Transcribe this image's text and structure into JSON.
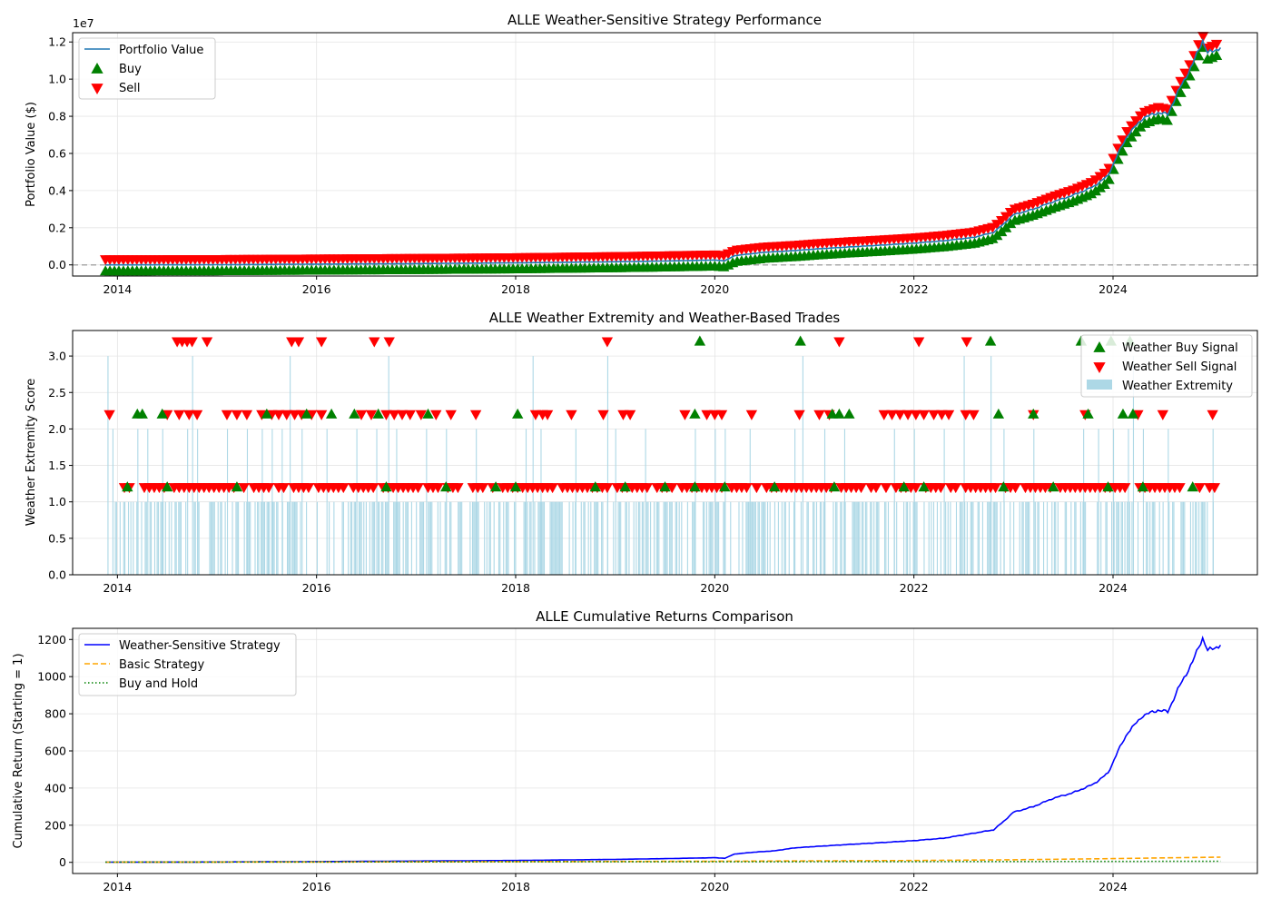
{
  "chart_data": [
    {
      "type": "line",
      "title": "ALLE Weather-Sensitive Strategy Performance",
      "xlabel": "",
      "ylabel": "Portfolio Value ($)",
      "y_scale_note": "1e7",
      "xlim": [
        2013.55,
        2025.45
      ],
      "ylim": [
        -0.06,
        1.25
      ],
      "x_ticks": [
        "2014",
        "2016",
        "2018",
        "2020",
        "2022",
        "2024"
      ],
      "y_ticks": [
        "0.0",
        "0.2",
        "0.4",
        "0.6",
        "0.8",
        "1.0",
        "1.2"
      ],
      "reference_line": {
        "y": 0,
        "style": "dashed",
        "color": "#aaaaaa"
      },
      "legend": {
        "position": "top-left",
        "entries": [
          "Portfolio Value",
          "Buy",
          "Sell"
        ]
      },
      "series": [
        {
          "name": "Portfolio Value",
          "color": "#1f77b4",
          "points": [
            [
              2013.88,
              0.0
            ],
            [
              2015.0,
              0.001
            ],
            [
              2016.0,
              0.004
            ],
            [
              2017.0,
              0.007
            ],
            [
              2018.0,
              0.011
            ],
            [
              2018.5,
              0.014
            ],
            [
              2019.0,
              0.017
            ],
            [
              2019.5,
              0.021
            ],
            [
              2020.0,
              0.026
            ],
            [
              2020.1,
              0.022
            ],
            [
              2020.2,
              0.05
            ],
            [
              2020.5,
              0.068
            ],
            [
              2020.8,
              0.077
            ],
            [
              2021.0,
              0.085
            ],
            [
              2021.3,
              0.095
            ],
            [
              2021.6,
              0.104
            ],
            [
              2022.0,
              0.117
            ],
            [
              2022.3,
              0.13
            ],
            [
              2022.6,
              0.148
            ],
            [
              2022.8,
              0.175
            ],
            [
              2022.9,
              0.22
            ],
            [
              2023.0,
              0.27
            ],
            [
              2023.2,
              0.3
            ],
            [
              2023.4,
              0.34
            ],
            [
              2023.6,
              0.375
            ],
            [
              2023.8,
              0.42
            ],
            [
              2023.95,
              0.48
            ],
            [
              2024.05,
              0.6
            ],
            [
              2024.15,
              0.7
            ],
            [
              2024.3,
              0.79
            ],
            [
              2024.45,
              0.82
            ],
            [
              2024.55,
              0.81
            ],
            [
              2024.65,
              0.93
            ],
            [
              2024.8,
              1.08
            ],
            [
              2024.9,
              1.21
            ],
            [
              2024.95,
              1.14
            ],
            [
              2025.0,
              1.15
            ],
            [
              2025.08,
              1.17
            ]
          ]
        }
      ],
      "markers": {
        "Buy": {
          "symbol": "triangle-up",
          "color": "#008000"
        },
        "Sell": {
          "symbol": "triangle-down",
          "color": "#ff0000"
        }
      }
    },
    {
      "type": "bar",
      "title": "ALLE Weather Extremity and Weather-Based Trades",
      "xlabel": "",
      "ylabel": "Weather Extremity Score",
      "xlim": [
        2013.55,
        2025.45
      ],
      "ylim": [
        0,
        3.35
      ],
      "x_ticks": [
        "2014",
        "2016",
        "2018",
        "2020",
        "2022",
        "2024"
      ],
      "y_ticks": [
        "0.0",
        "0.5",
        "1.0",
        "1.5",
        "2.0",
        "2.5",
        "3.0"
      ],
      "legend": {
        "position": "upper-right",
        "entries": [
          "Weather Buy Signal",
          "Weather Sell Signal",
          "Weather Extremity"
        ]
      },
      "extremity_color": "#add8e6",
      "extremity_score_3_dates": [
        2013.9,
        2014.75,
        2015.73,
        2016.72,
        2018.17,
        2018.92,
        2020.88,
        2022.5,
        2022.77,
        2024.2
      ],
      "extremity_score_2_dates": [
        2013.95,
        2014.2,
        2014.3,
        2014.45,
        2014.7,
        2014.8,
        2015.1,
        2015.3,
        2015.45,
        2015.55,
        2015.65,
        2015.85,
        2016.1,
        2016.4,
        2016.6,
        2016.8,
        2017.1,
        2017.3,
        2017.6,
        2018.1,
        2018.25,
        2018.6,
        2019.0,
        2019.3,
        2019.8,
        2020.0,
        2020.1,
        2020.35,
        2020.8,
        2021.1,
        2021.3,
        2021.8,
        2022.0,
        2022.3,
        2022.9,
        2023.2,
        2023.7,
        2023.85,
        2024.0,
        2024.15,
        2024.3,
        2024.55,
        2025.0
      ],
      "buy_signals": [
        {
          "x": 2019.85,
          "score": 3
        },
        {
          "x": 2020.86,
          "score": 3
        },
        {
          "x": 2022.77,
          "score": 3
        },
        {
          "x": 2023.68,
          "score": 3
        },
        {
          "x": 2023.98,
          "score": 3
        },
        {
          "x": 2024.17,
          "score": 3
        },
        {
          "x": 2014.2,
          "score": 2
        },
        {
          "x": 2014.25,
          "score": 2
        },
        {
          "x": 2014.45,
          "score": 2
        },
        {
          "x": 2015.5,
          "score": 2
        },
        {
          "x": 2015.9,
          "score": 2
        },
        {
          "x": 2016.15,
          "score": 2
        },
        {
          "x": 2016.38,
          "score": 2
        },
        {
          "x": 2016.62,
          "score": 2
        },
        {
          "x": 2017.12,
          "score": 2
        },
        {
          "x": 2018.02,
          "score": 2
        },
        {
          "x": 2019.8,
          "score": 2
        },
        {
          "x": 2021.18,
          "score": 2
        },
        {
          "x": 2021.25,
          "score": 2
        },
        {
          "x": 2021.35,
          "score": 2
        },
        {
          "x": 2022.85,
          "score": 2
        },
        {
          "x": 2023.2,
          "score": 2
        },
        {
          "x": 2023.75,
          "score": 2
        },
        {
          "x": 2024.1,
          "score": 2
        },
        {
          "x": 2024.2,
          "score": 2
        },
        {
          "x": 2014.1,
          "score": 1
        },
        {
          "x": 2014.5,
          "score": 1
        },
        {
          "x": 2015.2,
          "score": 1
        },
        {
          "x": 2016.7,
          "score": 1
        },
        {
          "x": 2017.3,
          "score": 1
        },
        {
          "x": 2017.8,
          "score": 1
        },
        {
          "x": 2018.0,
          "score": 1
        },
        {
          "x": 2018.8,
          "score": 1
        },
        {
          "x": 2019.1,
          "score": 1
        },
        {
          "x": 2019.5,
          "score": 1
        },
        {
          "x": 2019.8,
          "score": 1
        },
        {
          "x": 2020.1,
          "score": 1
        },
        {
          "x": 2020.6,
          "score": 1
        },
        {
          "x": 2021.2,
          "score": 1
        },
        {
          "x": 2021.9,
          "score": 1
        },
        {
          "x": 2022.1,
          "score": 1
        },
        {
          "x": 2022.9,
          "score": 1
        },
        {
          "x": 2023.4,
          "score": 1
        },
        {
          "x": 2023.95,
          "score": 1
        },
        {
          "x": 2024.3,
          "score": 1
        },
        {
          "x": 2024.8,
          "score": 1
        }
      ],
      "sell_signals": [
        {
          "x": 2014.6,
          "score": 3
        },
        {
          "x": 2014.65,
          "score": 3
        },
        {
          "x": 2014.7,
          "score": 3
        },
        {
          "x": 2014.75,
          "score": 3
        },
        {
          "x": 2014.9,
          "score": 3
        },
        {
          "x": 2015.75,
          "score": 3
        },
        {
          "x": 2015.82,
          "score": 3
        },
        {
          "x": 2016.05,
          "score": 3
        },
        {
          "x": 2016.58,
          "score": 3
        },
        {
          "x": 2016.73,
          "score": 3
        },
        {
          "x": 2018.92,
          "score": 3
        },
        {
          "x": 2021.25,
          "score": 3
        },
        {
          "x": 2022.05,
          "score": 3
        },
        {
          "x": 2022.53,
          "score": 3
        },
        {
          "x": 2013.92,
          "score": 2
        },
        {
          "x": 2014.5,
          "score": 2
        },
        {
          "x": 2014.62,
          "score": 2
        },
        {
          "x": 2014.72,
          "score": 2
        },
        {
          "x": 2014.8,
          "score": 2
        },
        {
          "x": 2015.1,
          "score": 2
        },
        {
          "x": 2015.2,
          "score": 2
        },
        {
          "x": 2015.3,
          "score": 2
        },
        {
          "x": 2015.45,
          "score": 2
        },
        {
          "x": 2015.55,
          "score": 2
        },
        {
          "x": 2015.62,
          "score": 2
        },
        {
          "x": 2015.7,
          "score": 2
        },
        {
          "x": 2015.78,
          "score": 2
        },
        {
          "x": 2015.85,
          "score": 2
        },
        {
          "x": 2015.95,
          "score": 2
        },
        {
          "x": 2016.05,
          "score": 2
        },
        {
          "x": 2016.45,
          "score": 2
        },
        {
          "x": 2016.55,
          "score": 2
        },
        {
          "x": 2016.7,
          "score": 2
        },
        {
          "x": 2016.78,
          "score": 2
        },
        {
          "x": 2016.86,
          "score": 2
        },
        {
          "x": 2016.94,
          "score": 2
        },
        {
          "x": 2017.05,
          "score": 2
        },
        {
          "x": 2017.2,
          "score": 2
        },
        {
          "x": 2017.35,
          "score": 2
        },
        {
          "x": 2017.6,
          "score": 2
        },
        {
          "x": 2018.2,
          "score": 2
        },
        {
          "x": 2018.27,
          "score": 2
        },
        {
          "x": 2018.32,
          "score": 2
        },
        {
          "x": 2018.56,
          "score": 2
        },
        {
          "x": 2018.88,
          "score": 2
        },
        {
          "x": 2019.08,
          "score": 2
        },
        {
          "x": 2019.15,
          "score": 2
        },
        {
          "x": 2019.7,
          "score": 2
        },
        {
          "x": 2019.92,
          "score": 2
        },
        {
          "x": 2020.0,
          "score": 2
        },
        {
          "x": 2020.07,
          "score": 2
        },
        {
          "x": 2020.37,
          "score": 2
        },
        {
          "x": 2020.85,
          "score": 2
        },
        {
          "x": 2021.05,
          "score": 2
        },
        {
          "x": 2021.15,
          "score": 2
        },
        {
          "x": 2021.7,
          "score": 2
        },
        {
          "x": 2021.78,
          "score": 2
        },
        {
          "x": 2021.86,
          "score": 2
        },
        {
          "x": 2021.94,
          "score": 2
        },
        {
          "x": 2022.02,
          "score": 2
        },
        {
          "x": 2022.1,
          "score": 2
        },
        {
          "x": 2022.2,
          "score": 2
        },
        {
          "x": 2022.28,
          "score": 2
        },
        {
          "x": 2022.35,
          "score": 2
        },
        {
          "x": 2022.52,
          "score": 2
        },
        {
          "x": 2022.6,
          "score": 2
        },
        {
          "x": 2023.2,
          "score": 2
        },
        {
          "x": 2023.72,
          "score": 2
        },
        {
          "x": 2024.25,
          "score": 2
        },
        {
          "x": 2024.5,
          "score": 2
        },
        {
          "x": 2025.0,
          "score": 2
        }
      ],
      "sell_score_1_range": [
        2013.95,
        2025.02
      ]
    },
    {
      "type": "line",
      "title": "ALLE Cumulative Returns Comparison",
      "xlabel": "",
      "ylabel": "Cumulative Return (Starting = 1)",
      "xlim": [
        2013.55,
        2025.45
      ],
      "ylim": [
        -60,
        1260
      ],
      "x_ticks": [
        "2014",
        "2016",
        "2018",
        "2020",
        "2022",
        "2024"
      ],
      "y_ticks": [
        "0",
        "200",
        "400",
        "600",
        "800",
        "1000",
        "1200"
      ],
      "legend": {
        "position": "top-left",
        "entries": [
          "Weather-Sensitive Strategy",
          "Basic Strategy",
          "Buy and Hold"
        ]
      },
      "series": [
        {
          "name": "Weather-Sensitive Strategy",
          "color": "#0000ff",
          "style": "solid",
          "points": [
            [
              2013.88,
              1
            ],
            [
              2015.0,
              2
            ],
            [
              2016.0,
              4
            ],
            [
              2017.0,
              7
            ],
            [
              2018.0,
              10
            ],
            [
              2018.5,
              13
            ],
            [
              2019.0,
              16
            ],
            [
              2019.5,
              20
            ],
            [
              2020.0,
              25
            ],
            [
              2020.1,
              22
            ],
            [
              2020.2,
              45
            ],
            [
              2020.4,
              55
            ],
            [
              2020.6,
              62
            ],
            [
              2020.8,
              78
            ],
            [
              2021.0,
              85
            ],
            [
              2021.3,
              95
            ],
            [
              2021.6,
              104
            ],
            [
              2022.0,
              117
            ],
            [
              2022.3,
              130
            ],
            [
              2022.5,
              148
            ],
            [
              2022.8,
              175
            ],
            [
              2022.9,
              220
            ],
            [
              2023.0,
              270
            ],
            [
              2023.2,
              300
            ],
            [
              2023.4,
              345
            ],
            [
              2023.6,
              375
            ],
            [
              2023.8,
              420
            ],
            [
              2023.95,
              480
            ],
            [
              2024.05,
              600
            ],
            [
              2024.15,
              700
            ],
            [
              2024.3,
              790
            ],
            [
              2024.45,
              820
            ],
            [
              2024.55,
              810
            ],
            [
              2024.65,
              930
            ],
            [
              2024.8,
              1080
            ],
            [
              2024.9,
              1210
            ],
            [
              2024.95,
              1140
            ],
            [
              2025.0,
              1150
            ],
            [
              2025.08,
              1170
            ]
          ]
        },
        {
          "name": "Basic Strategy",
          "color": "#ffa500",
          "style": "dashed",
          "points": [
            [
              2013.88,
              1
            ],
            [
              2016.0,
              2
            ],
            [
              2018.0,
              4
            ],
            [
              2020.0,
              6
            ],
            [
              2021.0,
              8
            ],
            [
              2022.0,
              10
            ],
            [
              2023.0,
              14
            ],
            [
              2024.0,
              20
            ],
            [
              2024.5,
              24
            ],
            [
              2025.08,
              28
            ]
          ]
        },
        {
          "name": "Buy and Hold",
          "color": "#008000",
          "style": "dotted",
          "points": [
            [
              2013.88,
              1
            ],
            [
              2016.0,
              2
            ],
            [
              2018.0,
              3
            ],
            [
              2020.0,
              3
            ],
            [
              2022.0,
              4
            ],
            [
              2024.0,
              5
            ],
            [
              2025.08,
              6
            ]
          ]
        }
      ]
    }
  ]
}
